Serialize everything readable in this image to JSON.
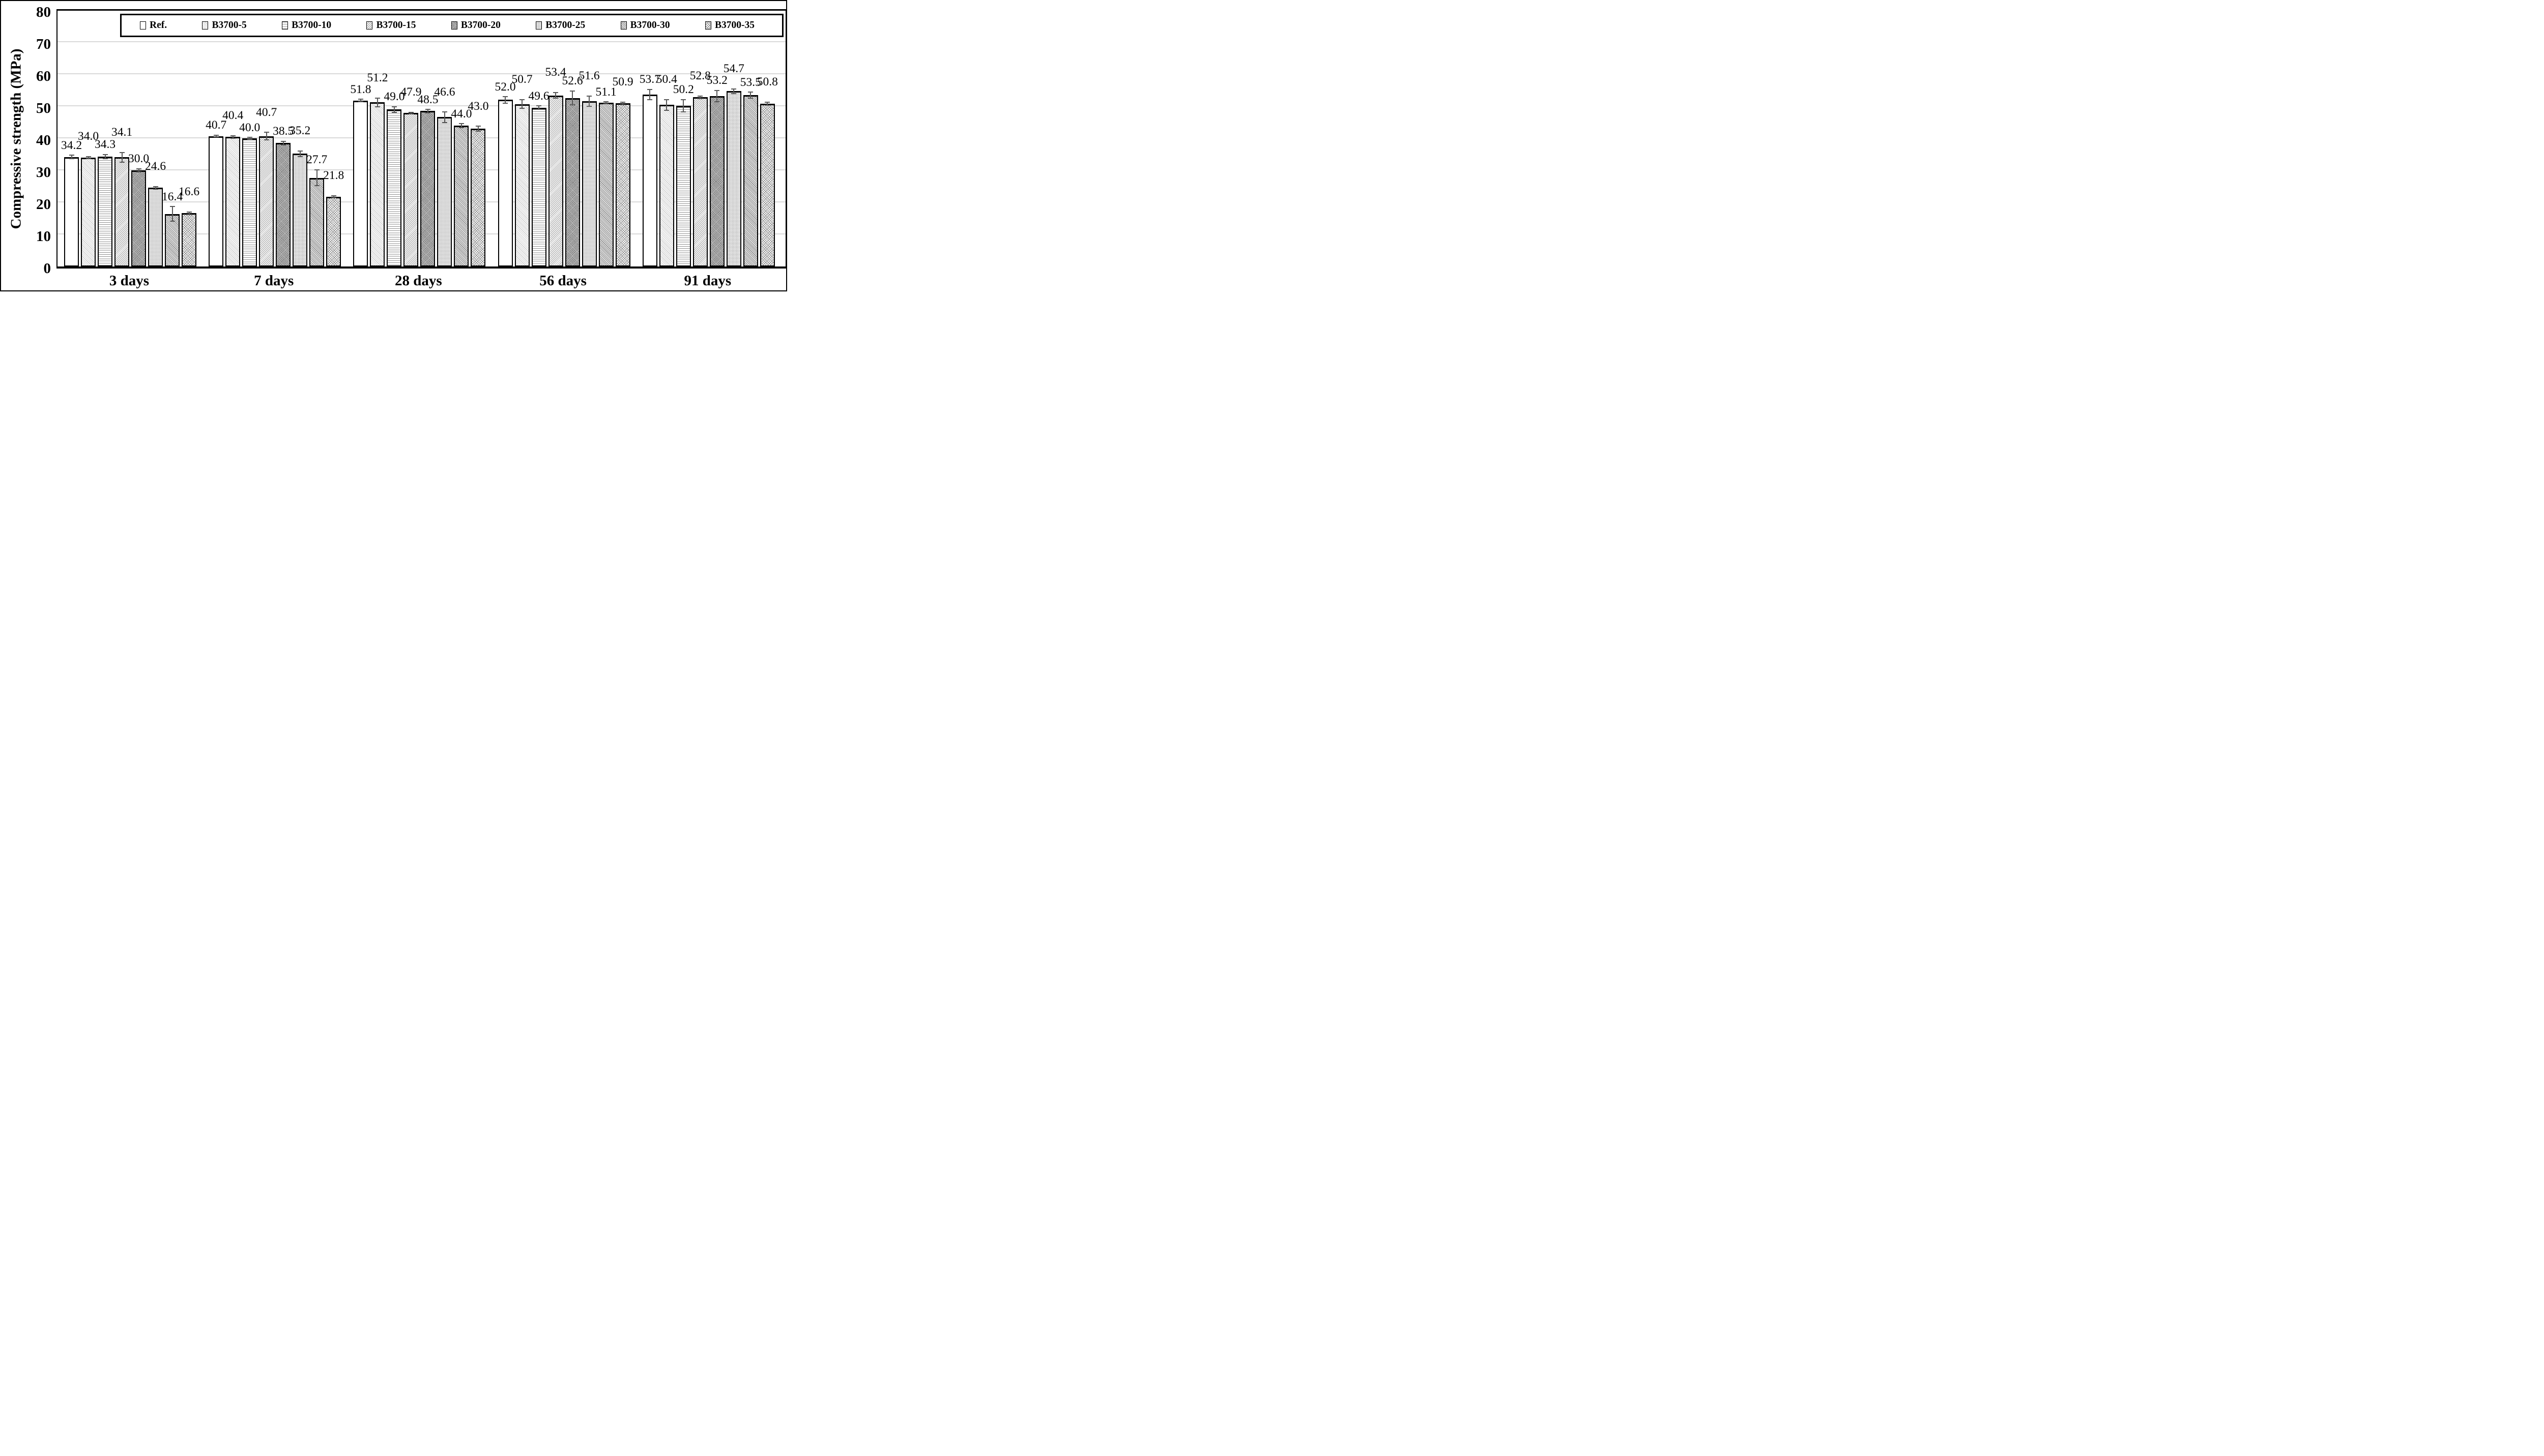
{
  "figure_title": "Compressive strength bar chart",
  "colors": {
    "background": "#ffffff",
    "plot_border": "#000000",
    "gridline": "#d9d9d9",
    "error_bar": "#595959",
    "bar_border": "#000000",
    "text": "#000000"
  },
  "y_axis": {
    "title": "Compressive strength (MPa)",
    "ticks": [
      "0",
      "10",
      "20",
      "30",
      "40",
      "50",
      "60",
      "70",
      "80"
    ]
  },
  "chart_data": {
    "type": "bar",
    "title": "",
    "xlabel": "",
    "ylabel": "Compressive strength (MPa)",
    "ylim": [
      0,
      80
    ],
    "ytick_step": 10,
    "grid": true,
    "legend_position": "top",
    "categories": [
      "3 days",
      "7 days",
      "28 days",
      "56 days",
      "91 days"
    ],
    "series": [
      {
        "name": "Ref.",
        "swatch": "solid-white",
        "values": [
          34.2,
          40.7,
          51.8,
          52.0,
          53.7
        ],
        "errors": [
          0.5,
          0.3,
          0.4,
          1.0,
          1.6
        ]
      },
      {
        "name": "B3700-5",
        "swatch": "diagonal-hatch-light",
        "values": [
          34.0,
          40.4,
          51.2,
          50.7,
          50.4
        ],
        "errors": [
          0.3,
          0.4,
          1.4,
          1.4,
          1.7
        ]
      },
      {
        "name": "B3700-10",
        "swatch": "horizontal-lines",
        "values": [
          34.3,
          40.0,
          49.0,
          49.6,
          50.2
        ],
        "errors": [
          0.7,
          0.25,
          0.9,
          0.5,
          1.9
        ]
      },
      {
        "name": "B3700-15",
        "swatch": "diagonal-hatch",
        "values": [
          34.1,
          40.7,
          47.9,
          53.4,
          52.8
        ],
        "errors": [
          1.5,
          1.2,
          0.2,
          0.9,
          0.4
        ]
      },
      {
        "name": "B3700-20",
        "swatch": "dense-dots-dark",
        "values": [
          30.0,
          38.5,
          48.5,
          52.6,
          53.2
        ],
        "errors": [
          0.5,
          0.6,
          0.5,
          2.2,
          1.8
        ]
      },
      {
        "name": "B3700-25",
        "swatch": "fine-dots-light",
        "values": [
          24.6,
          35.2,
          46.6,
          51.6,
          54.7
        ],
        "errors": [
          0.4,
          0.9,
          1.6,
          1.6,
          0.7
        ]
      },
      {
        "name": "B3700-30",
        "swatch": "diagonal-dense-dark",
        "values": [
          16.4,
          27.7,
          44.0,
          51.1,
          53.5
        ],
        "errors": [
          2.3,
          2.5,
          0.6,
          0.3,
          0.9
        ]
      },
      {
        "name": "B3700-35",
        "swatch": "crosshatch",
        "values": [
          16.6,
          21.8,
          43.0,
          50.9,
          50.8
        ],
        "errors": [
          0.4,
          0.3,
          0.8,
          0.4,
          0.5
        ]
      }
    ],
    "data_labels_visible": true
  }
}
